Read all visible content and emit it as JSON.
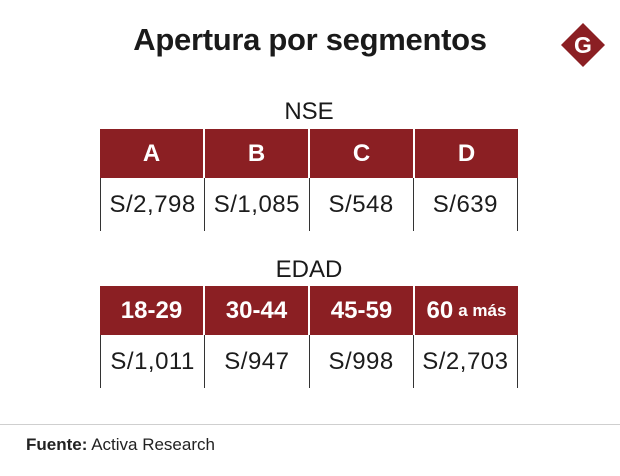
{
  "title": "Apertura por segmentos",
  "logo": {
    "letter": "G",
    "color": "#8b1f23"
  },
  "chart_data": [
    {
      "type": "table",
      "title": "NSE",
      "columns": [
        "A",
        "B",
        "C",
        "D"
      ],
      "values": [
        "S/2,798",
        "S/1,085",
        "S/548",
        "S/639"
      ]
    },
    {
      "type": "table",
      "title": "EDAD",
      "columns": [
        {
          "main": "18-29",
          "suffix": ""
        },
        {
          "main": "30-44",
          "suffix": ""
        },
        {
          "main": "45-59",
          "suffix": ""
        },
        {
          "main": "60",
          "suffix": "a más"
        }
      ],
      "values": [
        "S/1,011",
        "S/947",
        "S/998",
        "S/2,703"
      ]
    }
  ],
  "source": {
    "label": "Fuente:",
    "text": "Activa Research"
  },
  "colors": {
    "header_bg": "#8b1f23",
    "header_text": "#ffffff"
  }
}
